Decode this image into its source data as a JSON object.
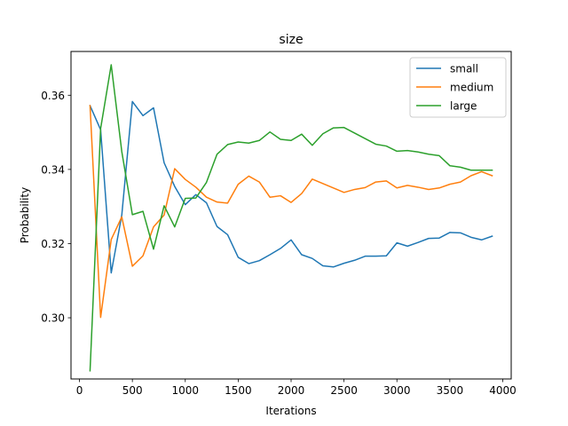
{
  "chart_data": {
    "type": "line",
    "title": "size",
    "xlabel": "Iterations",
    "ylabel": "Probability",
    "xlim": [
      -80,
      4080
    ],
    "ylim": [
      0.2835,
      0.3718
    ],
    "xticks": [
      0,
      500,
      1000,
      1500,
      2000,
      2500,
      3000,
      3500,
      4000
    ],
    "yticks": [
      0.3,
      0.32,
      0.34,
      0.36
    ],
    "ytick_labels": [
      "0.30",
      "0.32",
      "0.34",
      "0.36"
    ],
    "legend_position": "top-right",
    "grid": false,
    "x": [
      100,
      200,
      300,
      400,
      500,
      600,
      700,
      800,
      900,
      1000,
      1100,
      1200,
      1300,
      1400,
      1500,
      1600,
      1700,
      1800,
      1900,
      2000,
      2100,
      2200,
      2300,
      2400,
      2500,
      2600,
      2700,
      2800,
      2900,
      3000,
      3100,
      3200,
      3300,
      3400,
      3500,
      3600,
      3700,
      3800,
      3900
    ],
    "series": [
      {
        "name": "small",
        "color": "#1f77b4",
        "values": [
          0.3572,
          0.3507,
          0.3121,
          0.3277,
          0.3583,
          0.3545,
          0.3566,
          0.3418,
          0.3354,
          0.3305,
          0.3332,
          0.331,
          0.3246,
          0.3224,
          0.3163,
          0.3146,
          0.3154,
          0.317,
          0.3187,
          0.321,
          0.317,
          0.316,
          0.314,
          0.3137,
          0.3147,
          0.3155,
          0.3166,
          0.3166,
          0.3167,
          0.3202,
          0.3193,
          0.3203,
          0.3214,
          0.3215,
          0.323,
          0.3229,
          0.3217,
          0.321,
          0.322
        ]
      },
      {
        "name": "medium",
        "color": "#ff7f0e",
        "values": [
          0.3572,
          0.3001,
          0.3211,
          0.3272,
          0.3139,
          0.3167,
          0.3245,
          0.3277,
          0.3402,
          0.3373,
          0.3352,
          0.3325,
          0.3312,
          0.3309,
          0.336,
          0.3382,
          0.3366,
          0.3325,
          0.3329,
          0.3311,
          0.3335,
          0.3374,
          0.3362,
          0.335,
          0.3338,
          0.3346,
          0.3351,
          0.3366,
          0.3369,
          0.335,
          0.3357,
          0.3352,
          0.3346,
          0.335,
          0.336,
          0.3366,
          0.3383,
          0.3394,
          0.3383
        ]
      },
      {
        "name": "large",
        "color": "#2ca02c",
        "values": [
          0.2857,
          0.351,
          0.3682,
          0.3448,
          0.3278,
          0.3287,
          0.3185,
          0.3302,
          0.3245,
          0.3322,
          0.3323,
          0.3365,
          0.3441,
          0.3467,
          0.3474,
          0.3471,
          0.3478,
          0.3501,
          0.3481,
          0.3478,
          0.3495,
          0.3465,
          0.3496,
          0.3512,
          0.3513,
          0.3498,
          0.3483,
          0.3468,
          0.3463,
          0.3449,
          0.3451,
          0.3447,
          0.3441,
          0.3437,
          0.341,
          0.3406,
          0.3398,
          0.3398,
          0.3398
        ]
      }
    ]
  }
}
